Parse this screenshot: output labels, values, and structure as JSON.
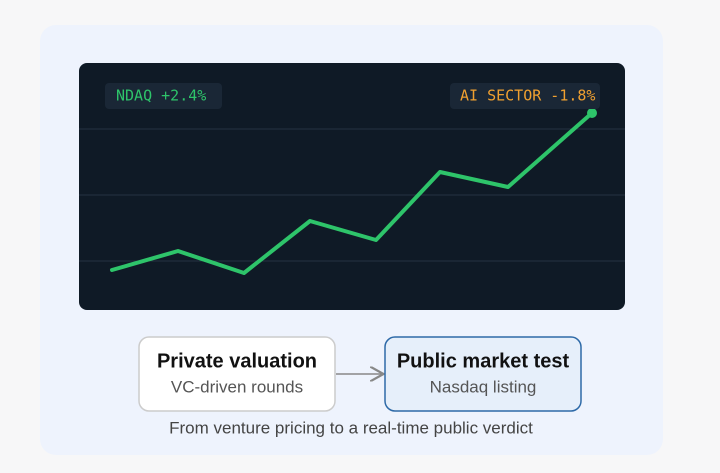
{
  "tickers": [
    "NDAQ +2.4%",
    "AI SECTOR -1.8%"
  ],
  "flow": {
    "nodes": [
      {
        "title": "Private valuation",
        "subtitle": "VC-driven rounds"
      },
      {
        "title": "Public market test",
        "subtitle": "Nasdaq listing"
      }
    ]
  },
  "caption": "From venture pricing to a real-time public verdict"
}
